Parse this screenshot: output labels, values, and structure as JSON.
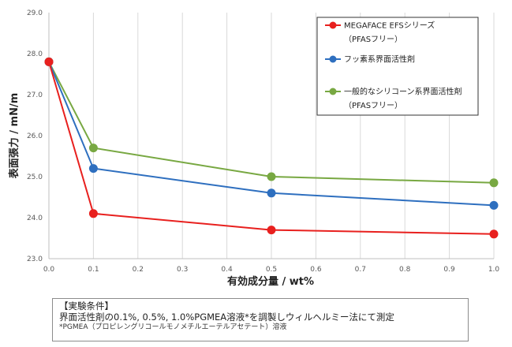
{
  "chart_data": {
    "type": "line",
    "xlabel": "有効成分量 / wt%",
    "ylabel": "表面張力 / mN/m",
    "xlim": [
      0,
      1.0
    ],
    "ylim": [
      23.0,
      29.0
    ],
    "x_ticks": [
      "0.0",
      "0.1",
      "0.2",
      "0.3",
      "0.4",
      "0.5",
      "0.6",
      "0.7",
      "0.8",
      "0.9",
      "1.0"
    ],
    "y_ticks": [
      "23.0",
      "24.0",
      "25.0",
      "26.0",
      "27.0",
      "28.0",
      "29.0"
    ],
    "grid": "vertical",
    "legend_position": "top-right",
    "series": [
      {
        "name": "MEGAFACE EFSシリーズ",
        "name_line2": "（PFASフリー）",
        "color": "#e8201e",
        "points": [
          [
            0,
            27.8
          ],
          [
            0.1,
            24.1
          ],
          [
            0.5,
            23.7
          ],
          [
            1.0,
            23.6
          ]
        ]
      },
      {
        "name": "フッ素系界面活性剤",
        "name_line2": "",
        "color": "#2e6fbf",
        "points": [
          [
            0,
            27.8
          ],
          [
            0.1,
            25.2
          ],
          [
            0.5,
            24.6
          ],
          [
            1.0,
            24.3
          ]
        ]
      },
      {
        "name": "一般的なシリコーン系界面活性剤",
        "name_line2": "（PFASフリー）",
        "color": "#78a842",
        "points": [
          [
            0,
            27.8
          ],
          [
            0.1,
            25.7
          ],
          [
            0.5,
            25.0
          ],
          [
            1.0,
            24.85
          ]
        ]
      }
    ]
  },
  "conditions": {
    "heading": "【実験条件】",
    "body": "界面活性剤の0.1%, 0.5%, 1.0%PGMEA溶液*を調製しウィルヘルミー法にて測定",
    "footnote": "*PGMEA（プロピレングリコールモノメチルエーテルアセテート）溶液"
  }
}
